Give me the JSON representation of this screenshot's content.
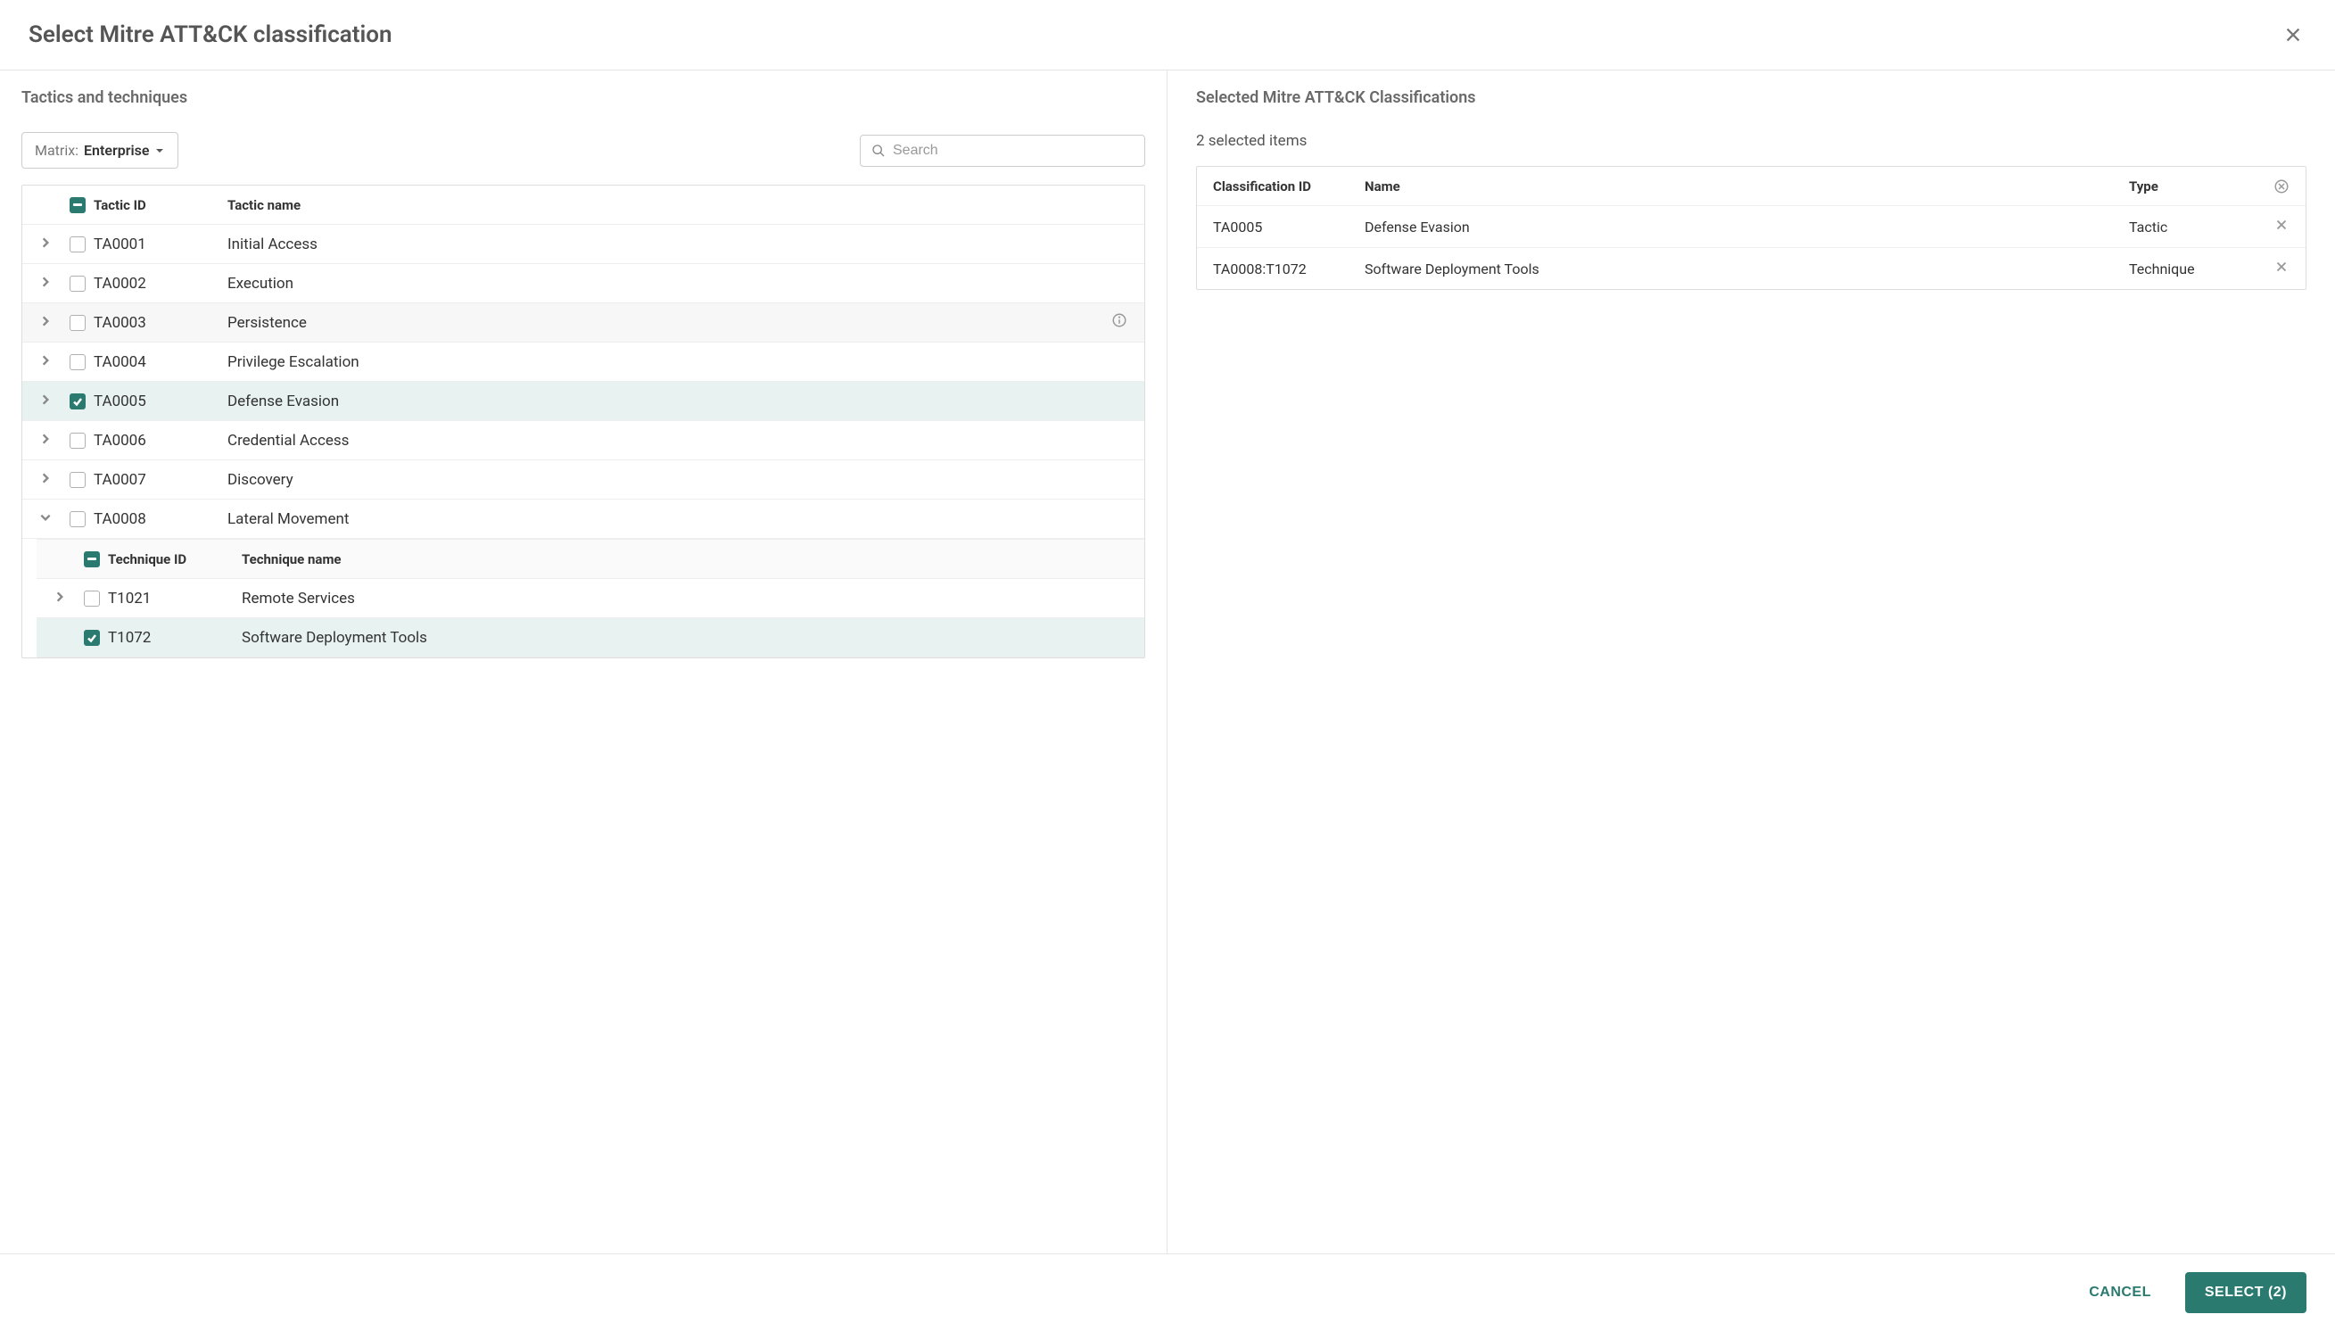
{
  "header": {
    "title": "Select Mitre ATT&CK classification"
  },
  "left": {
    "section_title": "Tactics and techniques",
    "matrix": {
      "label": "Matrix:",
      "value": "Enterprise"
    },
    "search_placeholder": "Search",
    "columns": {
      "tactic_id": "Tactic ID",
      "tactic_name": "Tactic name"
    },
    "sub_columns": {
      "technique_id": "Technique ID",
      "technique_name": "Technique name"
    },
    "tactics": [
      {
        "id": "TA0001",
        "name": "Initial Access",
        "checked": false,
        "expanded": false,
        "hover": false,
        "info": false
      },
      {
        "id": "TA0002",
        "name": "Execution",
        "checked": false,
        "expanded": false,
        "hover": false,
        "info": false
      },
      {
        "id": "TA0003",
        "name": "Persistence",
        "checked": false,
        "expanded": false,
        "hover": true,
        "info": true
      },
      {
        "id": "TA0004",
        "name": "Privilege Escalation",
        "checked": false,
        "expanded": false,
        "hover": false,
        "info": false
      },
      {
        "id": "TA0005",
        "name": "Defense Evasion",
        "checked": true,
        "expanded": false,
        "hover": false,
        "info": false
      },
      {
        "id": "TA0006",
        "name": "Credential Access",
        "checked": false,
        "expanded": false,
        "hover": false,
        "info": false
      },
      {
        "id": "TA0007",
        "name": "Discovery",
        "checked": false,
        "expanded": false,
        "hover": false,
        "info": false
      },
      {
        "id": "TA0008",
        "name": "Lateral Movement",
        "checked": false,
        "expanded": true,
        "hover": false,
        "info": false,
        "techniques": [
          {
            "id": "T1021",
            "name": "Remote Services",
            "checked": false,
            "expandable": true
          },
          {
            "id": "T1072",
            "name": "Software Deployment Tools",
            "checked": true,
            "expandable": false
          }
        ]
      }
    ]
  },
  "right": {
    "section_title": "Selected Mitre ATT&CK Classifications",
    "count_text": "2 selected items",
    "columns": {
      "classification_id": "Classification ID",
      "name": "Name",
      "type": "Type"
    },
    "items": [
      {
        "id": "TA0005",
        "name": "Defense Evasion",
        "type": "Tactic"
      },
      {
        "id": "TA0008:T1072",
        "name": "Software Deployment Tools",
        "type": "Technique"
      }
    ]
  },
  "footer": {
    "cancel": "CANCEL",
    "select": "SELECT (2)"
  },
  "colors": {
    "accent": "#2a7a6f",
    "selected_bg": "#e8f3f1",
    "hover_bg": "#f7f7f7",
    "border": "#dddddd",
    "text": "#333333",
    "muted": "#777777"
  }
}
